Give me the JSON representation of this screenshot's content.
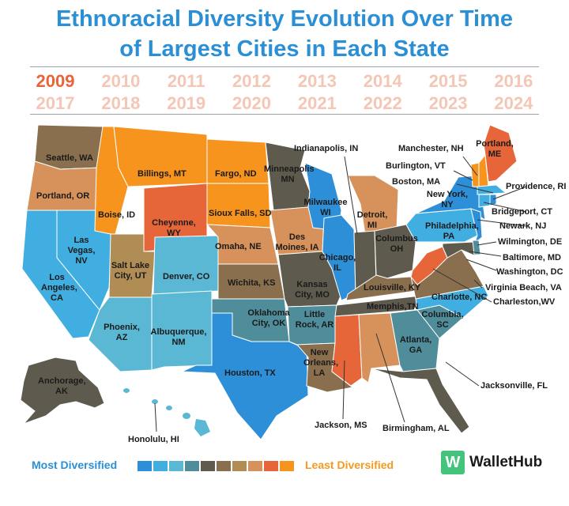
{
  "title": {
    "line1": "Ethnoracial Diversity Evolution Over Time",
    "line2": "of Largest Cities in Each State"
  },
  "years_row1": [
    "2009",
    "2010",
    "2011",
    "2012",
    "2013",
    "2014",
    "2015",
    "2016"
  ],
  "years_row2": [
    "2017",
    "2018",
    "2019",
    "2020",
    "2021",
    "2022",
    "2023",
    "2024"
  ],
  "active_year": "2009",
  "legend": {
    "most": "Most Diversified",
    "least": "Least Diversified",
    "scale_colors": [
      "#2d8fd8",
      "#40aee0",
      "#5bb8d4",
      "#4f8d9a",
      "#5e5b4e",
      "#8a6f4e",
      "#b08d55",
      "#d6925a",
      "#e6663a",
      "#f7941d"
    ]
  },
  "brand": {
    "icon": "W",
    "name": "WalletHub",
    "icon_color": "#43c37c"
  },
  "cities": {
    "wa": "Seattle, WA",
    "or": "Portland, OR",
    "ca": "Los Angeles, CA",
    "nv": "Las Vegas, NV",
    "id": "Boise, ID",
    "mt": "Billings, MT",
    "wy": "Cheyenne, WY",
    "ut": "Salt Lake City, UT",
    "az": "Phoenix, AZ",
    "co": "Denver, CO",
    "nm": "Albuquerque, NM",
    "nd": "Fargo, ND",
    "sd": "Sioux Falls, SD",
    "ne": "Omaha, NE",
    "ks": "Wichita, KS",
    "ok": "Oklahoma City, OK",
    "tx": "Houston, TX",
    "mn": "Minneapolis MN",
    "ia": "Des Moines, IA",
    "mo": "Kansas City, MO",
    "ar": "Little Rock, AR",
    "la": "New Orleans, LA",
    "wi": "Milwaukee WI",
    "il": "Chicago, IL",
    "mi": "Detroit, MI",
    "in": "Indianapolis, IN",
    "oh": "Columbus OH",
    "ky": "Louisville, KY",
    "tn": "Memphis,TN",
    "ms": "Jackson, MS",
    "al": "Birmingham, AL",
    "ga": "Atlanta, GA",
    "fl": "Jacksonville, FL",
    "sc": "Columbia, SC",
    "nc": "Charlotte, NC",
    "va": "Virginia Beach, VA",
    "wv": "Charleston,WV",
    "pa": "Philadelphia, PA",
    "ny": "New York, NY",
    "vt": "Burlington, VT",
    "nh": "Manchester, NH",
    "me": "Portland, ME",
    "ma": "Boston, MA",
    "ri": "Providence, RI",
    "ct": "Bridgeport, CT",
    "nj": "Newark, NJ",
    "de": "Wilmington, DE",
    "md": "Baltimore, MD",
    "dc": "Washington, DC",
    "ak": "Anchorage, AK",
    "hi": "Honolulu, HI"
  }
}
